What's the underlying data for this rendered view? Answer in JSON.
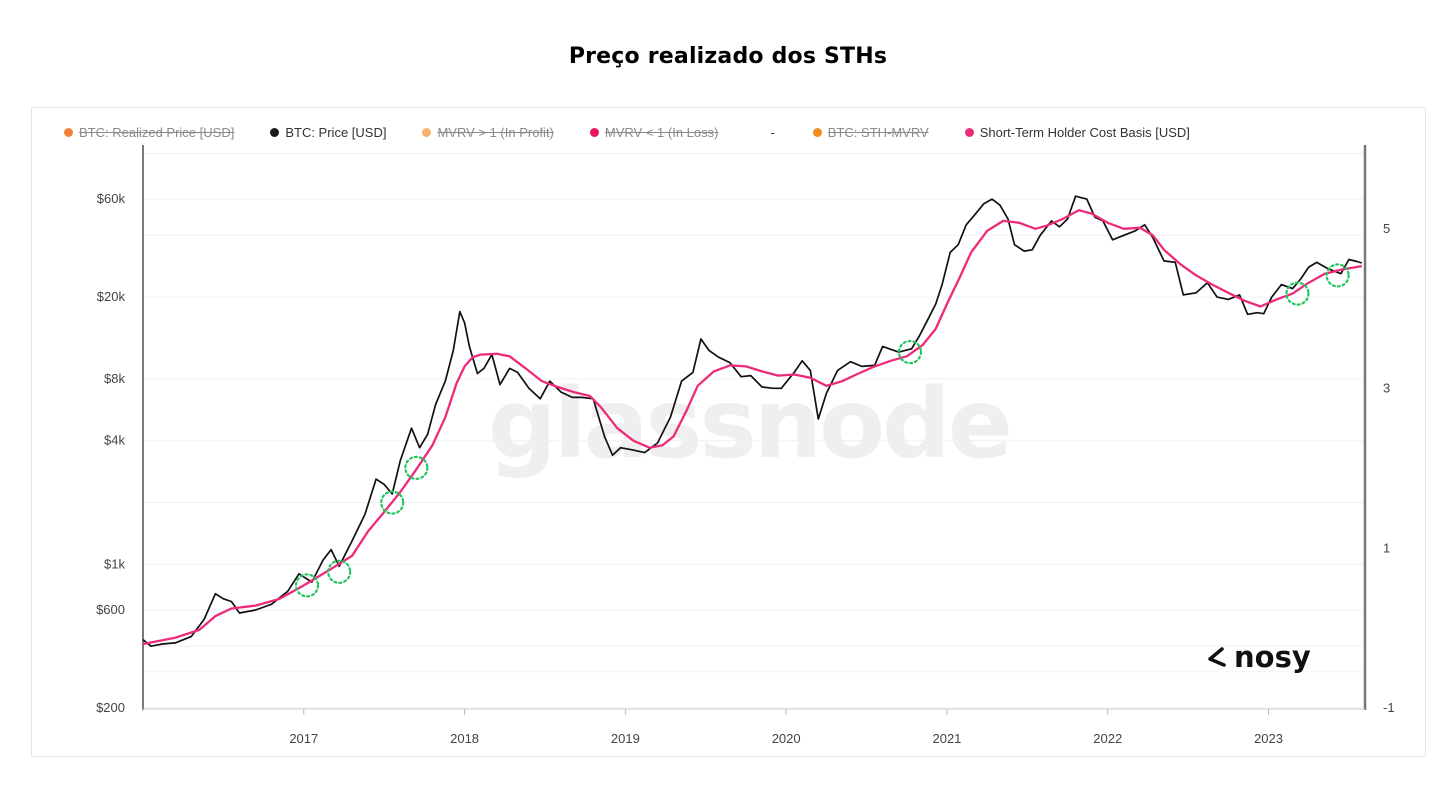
{
  "page": {
    "title": "Preço realizado dos STHs"
  },
  "legend": [
    {
      "label": "BTC: Realized Price [USD]",
      "color": "#f0833a",
      "enabled": false
    },
    {
      "label": "BTC: Price [USD]",
      "color": "#1a1a1a",
      "enabled": true
    },
    {
      "label": "MVRV > 1 (In Profit)",
      "color": "#f5b26b",
      "enabled": false
    },
    {
      "label": "MVRV < 1 (In Loss)",
      "color": "#e8145f",
      "enabled": false
    },
    {
      "label": "-",
      "color": "",
      "enabled": true
    },
    {
      "label": "BTC: STH-MVRV",
      "color": "#f08c1e",
      "enabled": false
    },
    {
      "label": "Short-Term Holder Cost Basis [USD]",
      "color": "#ee2a7b",
      "enabled": true
    }
  ],
  "watermark": "glassnode",
  "logo": {
    "text": "nosy"
  },
  "colors": {
    "price": "#111111",
    "cost_basis": "#ee2a7b",
    "marker": "#22c55e",
    "grid": "#f0f0f0"
  },
  "chart_data": {
    "type": "line",
    "title": "Preço realizado dos STHs",
    "scale": "log",
    "xlim": [
      2016.0,
      2023.6
    ],
    "ylim": [
      200,
      110000
    ],
    "x_ticks": [
      {
        "value": 2017,
        "label": "2017"
      },
      {
        "value": 2018,
        "label": "2018"
      },
      {
        "value": 2019,
        "label": "2019"
      },
      {
        "value": 2020,
        "label": "2020"
      },
      {
        "value": 2021,
        "label": "2021"
      },
      {
        "value": 2022,
        "label": "2022"
      },
      {
        "value": 2023,
        "label": "2023"
      }
    ],
    "y_ticks": [
      {
        "value": 60000,
        "label": "$60k"
      },
      {
        "value": 20000,
        "label": "$20k"
      },
      {
        "value": 8000,
        "label": "$8k"
      },
      {
        "value": 4000,
        "label": "$4k"
      },
      {
        "value": 1000,
        "label": "$1k"
      },
      {
        "value": 600,
        "label": "$600"
      },
      {
        "value": 200,
        "label": "$200"
      }
    ],
    "y2_ticks": [
      {
        "value": 5,
        "label": "5"
      },
      {
        "value": 3,
        "label": "3"
      },
      {
        "value": 1,
        "label": "1"
      },
      {
        "value": -1,
        "label": "-1"
      }
    ],
    "y2lim": [
      -1.0,
      6.05
    ],
    "series": [
      {
        "name": "BTC: Price [USD]",
        "points": [
          [
            2016.0,
            430
          ],
          [
            2016.05,
            400
          ],
          [
            2016.12,
            410
          ],
          [
            2016.2,
            415
          ],
          [
            2016.3,
            445
          ],
          [
            2016.38,
            540
          ],
          [
            2016.45,
            720
          ],
          [
            2016.5,
            680
          ],
          [
            2016.55,
            660
          ],
          [
            2016.6,
            580
          ],
          [
            2016.7,
            600
          ],
          [
            2016.8,
            640
          ],
          [
            2016.9,
            740
          ],
          [
            2016.97,
            900
          ],
          [
            2017.05,
            820
          ],
          [
            2017.12,
            1050
          ],
          [
            2017.17,
            1180
          ],
          [
            2017.22,
            980
          ],
          [
            2017.3,
            1300
          ],
          [
            2017.38,
            1750
          ],
          [
            2017.45,
            2600
          ],
          [
            2017.5,
            2450
          ],
          [
            2017.55,
            2200
          ],
          [
            2017.6,
            3200
          ],
          [
            2017.67,
            4600
          ],
          [
            2017.72,
            3700
          ],
          [
            2017.77,
            4300
          ],
          [
            2017.82,
            6000
          ],
          [
            2017.88,
            7800
          ],
          [
            2017.93,
            11000
          ],
          [
            2017.97,
            17000
          ],
          [
            2018.0,
            15000
          ],
          [
            2018.03,
            11500
          ],
          [
            2018.08,
            8500
          ],
          [
            2018.12,
            9000
          ],
          [
            2018.17,
            10500
          ],
          [
            2018.22,
            7500
          ],
          [
            2018.28,
            9000
          ],
          [
            2018.33,
            8600
          ],
          [
            2018.4,
            7200
          ],
          [
            2018.47,
            6400
          ],
          [
            2018.53,
            7800
          ],
          [
            2018.6,
            6900
          ],
          [
            2018.67,
            6500
          ],
          [
            2018.73,
            6500
          ],
          [
            2018.8,
            6400
          ],
          [
            2018.87,
            4200
          ],
          [
            2018.92,
            3400
          ],
          [
            2018.97,
            3700
          ],
          [
            2019.05,
            3600
          ],
          [
            2019.12,
            3500
          ],
          [
            2019.2,
            3900
          ],
          [
            2019.28,
            5200
          ],
          [
            2019.35,
            7800
          ],
          [
            2019.42,
            8600
          ],
          [
            2019.47,
            12500
          ],
          [
            2019.52,
            11000
          ],
          [
            2019.58,
            10200
          ],
          [
            2019.65,
            9600
          ],
          [
            2019.72,
            8200
          ],
          [
            2019.78,
            8300
          ],
          [
            2019.85,
            7300
          ],
          [
            2019.92,
            7200
          ],
          [
            2019.97,
            7200
          ],
          [
            2020.05,
            8600
          ],
          [
            2020.1,
            9800
          ],
          [
            2020.15,
            8800
          ],
          [
            2020.2,
            5100
          ],
          [
            2020.25,
            6800
          ],
          [
            2020.32,
            8800
          ],
          [
            2020.4,
            9700
          ],
          [
            2020.47,
            9200
          ],
          [
            2020.55,
            9300
          ],
          [
            2020.6,
            11500
          ],
          [
            2020.7,
            10800
          ],
          [
            2020.78,
            11200
          ],
          [
            2020.83,
            13000
          ],
          [
            2020.88,
            15500
          ],
          [
            2020.93,
            18500
          ],
          [
            2020.97,
            23000
          ],
          [
            2021.02,
            33000
          ],
          [
            2021.07,
            36000
          ],
          [
            2021.12,
            45000
          ],
          [
            2021.17,
            50000
          ],
          [
            2021.23,
            57000
          ],
          [
            2021.28,
            60000
          ],
          [
            2021.33,
            56000
          ],
          [
            2021.38,
            48000
          ],
          [
            2021.42,
            36000
          ],
          [
            2021.48,
            33500
          ],
          [
            2021.53,
            34000
          ],
          [
            2021.58,
            40000
          ],
          [
            2021.65,
            47000
          ],
          [
            2021.7,
            44000
          ],
          [
            2021.75,
            48000
          ],
          [
            2021.8,
            62000
          ],
          [
            2021.87,
            60000
          ],
          [
            2021.92,
            49000
          ],
          [
            2021.97,
            47000
          ],
          [
            2022.03,
            38000
          ],
          [
            2022.1,
            40000
          ],
          [
            2022.17,
            42000
          ],
          [
            2022.23,
            45000
          ],
          [
            2022.28,
            39000
          ],
          [
            2022.35,
            30000
          ],
          [
            2022.42,
            29500
          ],
          [
            2022.47,
            20500
          ],
          [
            2022.55,
            21000
          ],
          [
            2022.62,
            23500
          ],
          [
            2022.68,
            20000
          ],
          [
            2022.75,
            19500
          ],
          [
            2022.82,
            20500
          ],
          [
            2022.87,
            16500
          ],
          [
            2022.93,
            16800
          ],
          [
            2022.97,
            16600
          ],
          [
            2023.02,
            20000
          ],
          [
            2023.08,
            23000
          ],
          [
            2023.15,
            22000
          ],
          [
            2023.2,
            24500
          ],
          [
            2023.25,
            28000
          ],
          [
            2023.3,
            29500
          ],
          [
            2023.37,
            27500
          ],
          [
            2023.45,
            26000
          ],
          [
            2023.5,
            30500
          ],
          [
            2023.55,
            29800
          ],
          [
            2023.58,
            29300
          ]
        ]
      },
      {
        "name": "Short-Term Holder Cost Basis [USD]",
        "points": [
          [
            2016.0,
            410
          ],
          [
            2016.2,
            440
          ],
          [
            2016.35,
            480
          ],
          [
            2016.45,
            560
          ],
          [
            2016.55,
            610
          ],
          [
            2016.7,
            630
          ],
          [
            2016.85,
            680
          ],
          [
            2017.0,
            790
          ],
          [
            2017.15,
            930
          ],
          [
            2017.3,
            1100
          ],
          [
            2017.4,
            1450
          ],
          [
            2017.5,
            1800
          ],
          [
            2017.6,
            2250
          ],
          [
            2017.7,
            2900
          ],
          [
            2017.8,
            3800
          ],
          [
            2017.88,
            5200
          ],
          [
            2017.95,
            7600
          ],
          [
            2018.0,
            9200
          ],
          [
            2018.05,
            10200
          ],
          [
            2018.1,
            10500
          ],
          [
            2018.2,
            10600
          ],
          [
            2018.28,
            10300
          ],
          [
            2018.38,
            9000
          ],
          [
            2018.48,
            7800
          ],
          [
            2018.58,
            7300
          ],
          [
            2018.68,
            6900
          ],
          [
            2018.78,
            6600
          ],
          [
            2018.85,
            5800
          ],
          [
            2018.95,
            4600
          ],
          [
            2019.05,
            4000
          ],
          [
            2019.15,
            3700
          ],
          [
            2019.23,
            3800
          ],
          [
            2019.3,
            4200
          ],
          [
            2019.38,
            5600
          ],
          [
            2019.45,
            7400
          ],
          [
            2019.55,
            8700
          ],
          [
            2019.65,
            9300
          ],
          [
            2019.75,
            9200
          ],
          [
            2019.85,
            8700
          ],
          [
            2019.95,
            8300
          ],
          [
            2020.05,
            8400
          ],
          [
            2020.15,
            8100
          ],
          [
            2020.25,
            7400
          ],
          [
            2020.35,
            7800
          ],
          [
            2020.45,
            8500
          ],
          [
            2020.55,
            9200
          ],
          [
            2020.65,
            9800
          ],
          [
            2020.75,
            10300
          ],
          [
            2020.85,
            11700
          ],
          [
            2020.93,
            14000
          ],
          [
            2021.0,
            18500
          ],
          [
            2021.08,
            25000
          ],
          [
            2021.15,
            33000
          ],
          [
            2021.25,
            42000
          ],
          [
            2021.35,
            47000
          ],
          [
            2021.45,
            46000
          ],
          [
            2021.55,
            43000
          ],
          [
            2021.62,
            44500
          ],
          [
            2021.72,
            48000
          ],
          [
            2021.82,
            53000
          ],
          [
            2021.9,
            51000
          ],
          [
            2022.0,
            46000
          ],
          [
            2022.1,
            43000
          ],
          [
            2022.2,
            43500
          ],
          [
            2022.28,
            40000
          ],
          [
            2022.35,
            34000
          ],
          [
            2022.45,
            29000
          ],
          [
            2022.55,
            25500
          ],
          [
            2022.65,
            23000
          ],
          [
            2022.75,
            21000
          ],
          [
            2022.85,
            19200
          ],
          [
            2022.95,
            18000
          ],
          [
            2023.05,
            19500
          ],
          [
            2023.15,
            20800
          ],
          [
            2023.25,
            23500
          ],
          [
            2023.35,
            26000
          ],
          [
            2023.45,
            27200
          ],
          [
            2023.58,
            28300
          ]
        ]
      }
    ],
    "annotations": [
      {
        "type": "circle",
        "x": 2017.02,
        "y": 790
      },
      {
        "type": "circle",
        "x": 2017.22,
        "y": 920
      },
      {
        "type": "circle",
        "x": 2017.55,
        "y": 2000
      },
      {
        "type": "circle",
        "x": 2017.7,
        "y": 2950
      },
      {
        "type": "circle",
        "x": 2020.77,
        "y": 10800
      },
      {
        "type": "circle",
        "x": 2023.18,
        "y": 20800
      },
      {
        "type": "circle",
        "x": 2023.43,
        "y": 25500
      }
    ]
  }
}
